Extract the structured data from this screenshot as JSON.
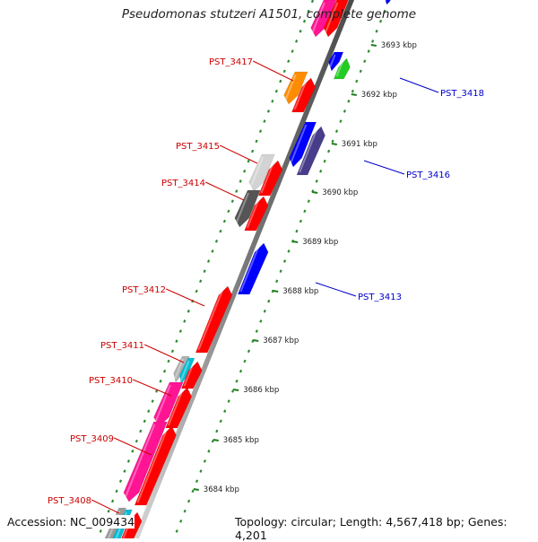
{
  "title": "Pseudomonas stutzeri A1501, complete genome",
  "footer": {
    "accession": "Accession: NC_009434",
    "topology": "Topology: circular; Length: 4,567,418 bp; Genes: 4,201"
  },
  "colors": {
    "label_top_strand": "#cc0000",
    "label_bottom_strand": "#0000cc",
    "backbone": "#888888",
    "dotted_track": "#2e8b2e"
  },
  "ticks": [
    {
      "label": "3693 kbp"
    },
    {
      "label": "3692 kbp"
    },
    {
      "label": "3691 kbp"
    },
    {
      "label": "3690 kbp"
    },
    {
      "label": "3689 kbp"
    },
    {
      "label": "3688 kbp"
    },
    {
      "label": "3687 kbp"
    },
    {
      "label": "3686 kbp"
    },
    {
      "label": "3685 kbp"
    },
    {
      "label": "3684 kbp"
    }
  ],
  "gene_labels": [
    {
      "label": "PST_3417",
      "strand": "top"
    },
    {
      "label": "PST_3415",
      "strand": "top"
    },
    {
      "label": "PST_3414",
      "strand": "top"
    },
    {
      "label": "PST_3412",
      "strand": "top"
    },
    {
      "label": "PST_3411",
      "strand": "top"
    },
    {
      "label": "PST_3410",
      "strand": "top"
    },
    {
      "label": "PST_3409",
      "strand": "top"
    },
    {
      "label": "PST_3408",
      "strand": "top"
    },
    {
      "label": "PST_3418",
      "strand": "bottom"
    },
    {
      "label": "PST_3416",
      "strand": "bottom"
    },
    {
      "label": "PST_3413",
      "strand": "bottom"
    }
  ],
  "genes": [
    {
      "name": "cds-pink-top",
      "strand": "bottom-ring",
      "color": "#ff1493"
    },
    {
      "name": "cds-red-top",
      "strand": "inner",
      "color": "#ff0000"
    },
    {
      "name": "cds-blue-top",
      "strand": "outer",
      "color": "#0000ff"
    },
    {
      "name": "cds-orange",
      "strand": "bottom-ring",
      "color": "#ff8c00"
    },
    {
      "name": "cds-red-3417",
      "strand": "inner",
      "color": "#ff0000"
    },
    {
      "name": "cds-blue-3418",
      "strand": "outer",
      "color": "#0000ff"
    },
    {
      "name": "cds-green-3418",
      "strand": "outer",
      "color": "#22cc22"
    },
    {
      "name": "cds-blue-3416a",
      "strand": "outer",
      "color": "#0000ff"
    },
    {
      "name": "cds-navy-3416b",
      "strand": "outer",
      "color": "#483d8b"
    },
    {
      "name": "cds-lightgray-3415",
      "strand": "bottom-ring",
      "color": "#d3d3d3"
    },
    {
      "name": "cds-red-3415",
      "strand": "inner",
      "color": "#ff0000"
    },
    {
      "name": "cds-darkgray-3414",
      "strand": "bottom-ring",
      "color": "#555555"
    },
    {
      "name": "cds-red-3414",
      "strand": "inner",
      "color": "#ff0000"
    },
    {
      "name": "cds-blue-3413",
      "strand": "outer",
      "color": "#0000ff"
    },
    {
      "name": "cds-red-3412",
      "strand": "inner",
      "color": "#ff0000"
    },
    {
      "name": "cds-gray-3411",
      "strand": "bottom-ring",
      "color": "#b0b0b0"
    },
    {
      "name": "cds-cyan-3411",
      "strand": "bottom-ring",
      "color": "#00bcd4"
    },
    {
      "name": "cds-red-3411",
      "strand": "inner",
      "color": "#ff0000"
    },
    {
      "name": "cds-pink-3410",
      "strand": "bottom-ring",
      "color": "#ff1493"
    },
    {
      "name": "cds-red-3410",
      "strand": "inner",
      "color": "#ff0000"
    },
    {
      "name": "cds-pink-3409",
      "strand": "bottom-ring",
      "color": "#ff1493"
    },
    {
      "name": "cds-red-3409",
      "strand": "inner",
      "color": "#ff0000"
    },
    {
      "name": "cds-gray-3408",
      "strand": "bottom-ring",
      "color": "#9a9a9a"
    },
    {
      "name": "cds-cyan-3408",
      "strand": "bottom-ring",
      "color": "#00bcd4"
    },
    {
      "name": "cds-red-3408",
      "strand": "inner",
      "color": "#ff0000"
    }
  ]
}
